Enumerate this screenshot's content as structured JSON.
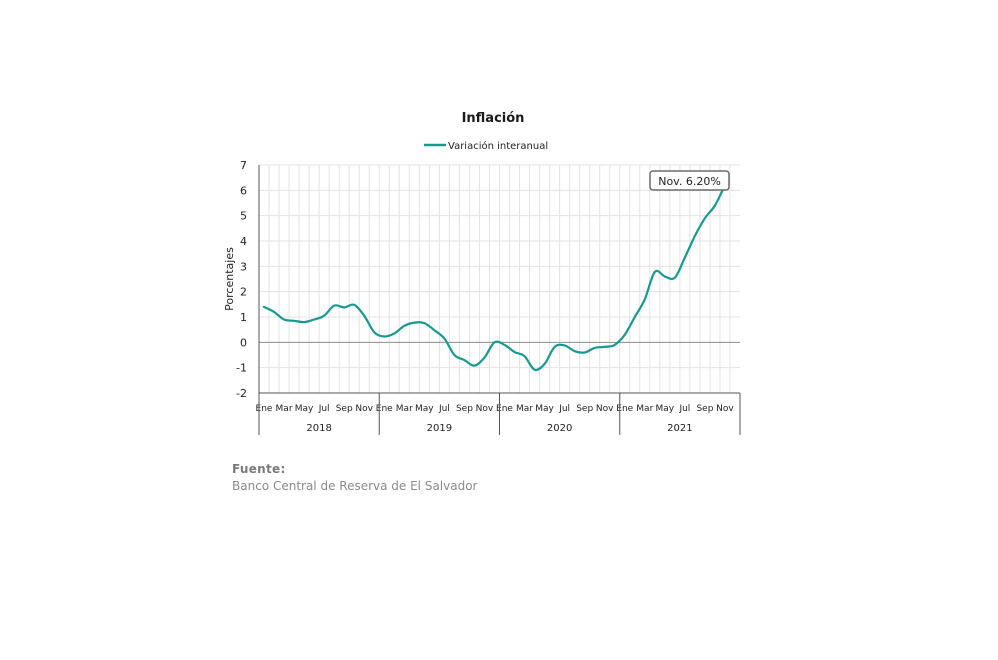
{
  "colors": {
    "series": "#18998f",
    "grid": "#e3e3e3",
    "axis": "#555555",
    "zero_line": "#8c8c8c",
    "text": "#222222"
  },
  "chart_data": {
    "type": "line",
    "title": "Inflación",
    "ylabel": "Porcentajes",
    "xlabel": "",
    "ylim": [
      -2,
      7
    ],
    "yticks": [
      -2,
      -1,
      0,
      1,
      2,
      3,
      4,
      5,
      6,
      7
    ],
    "grid": true,
    "legend_position": "top-center",
    "month_labels": [
      "Ene",
      "Mar",
      "May",
      "Jul",
      "Sep",
      "Nov"
    ],
    "years": [
      "2018",
      "2019",
      "2020",
      "2021"
    ],
    "series": [
      {
        "name": "Variación interanual",
        "x": [
          "2018-01",
          "2018-02",
          "2018-03",
          "2018-04",
          "2018-05",
          "2018-06",
          "2018-07",
          "2018-08",
          "2018-09",
          "2018-10",
          "2018-11",
          "2018-12",
          "2019-01",
          "2019-02",
          "2019-03",
          "2019-04",
          "2019-05",
          "2019-06",
          "2019-07",
          "2019-08",
          "2019-09",
          "2019-10",
          "2019-11",
          "2019-12",
          "2020-01",
          "2020-02",
          "2020-03",
          "2020-04",
          "2020-05",
          "2020-06",
          "2020-07",
          "2020-08",
          "2020-09",
          "2020-10",
          "2020-11",
          "2020-12",
          "2021-01",
          "2021-02",
          "2021-03",
          "2021-04",
          "2021-05",
          "2021-06",
          "2021-07",
          "2021-08",
          "2021-09",
          "2021-10",
          "2021-11"
        ],
        "values": [
          1.4,
          1.2,
          0.9,
          0.85,
          0.8,
          0.9,
          1.05,
          1.45,
          1.38,
          1.48,
          1.05,
          0.4,
          0.23,
          0.35,
          0.65,
          0.78,
          0.76,
          0.48,
          0.15,
          -0.5,
          -0.7,
          -0.92,
          -0.6,
          0.0,
          -0.1,
          -0.38,
          -0.55,
          -1.08,
          -0.85,
          -0.18,
          -0.12,
          -0.35,
          -0.4,
          -0.22,
          -0.18,
          -0.1,
          0.3,
          1.0,
          1.7,
          2.78,
          2.6,
          2.55,
          3.35,
          4.2,
          4.9,
          5.4,
          6.2
        ]
      }
    ],
    "annotations": [
      {
        "text": "Nov. 6.20%",
        "x": "2021-11",
        "y": 6.2
      }
    ]
  },
  "source": {
    "label": "Fuente:",
    "text": "Banco Central de Reserva de El Salvador"
  }
}
